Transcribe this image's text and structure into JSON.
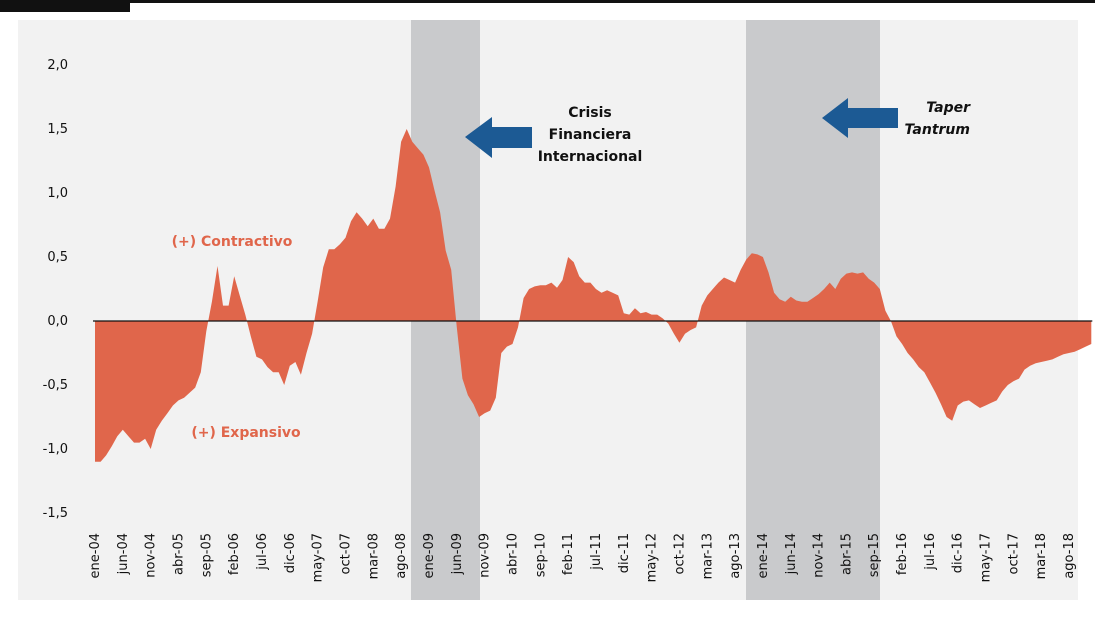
{
  "chart_data": {
    "type": "area",
    "color": "#e0664b",
    "categories": [
      "ene-04",
      null,
      null,
      null,
      null,
      "jun-04",
      null,
      null,
      null,
      null,
      "nov-04",
      null,
      null,
      null,
      null,
      "abr-05",
      null,
      null,
      null,
      null,
      "sep-05",
      null,
      null,
      null,
      null,
      "feb-06",
      null,
      null,
      null,
      null,
      "jul-06",
      null,
      null,
      null,
      null,
      "dic-06",
      null,
      null,
      null,
      null,
      "may-07",
      null,
      null,
      null,
      null,
      "oct-07",
      null,
      null,
      null,
      null,
      "mar-08",
      null,
      null,
      null,
      null,
      "ago-08",
      null,
      null,
      null,
      null,
      "ene-09",
      null,
      null,
      null,
      null,
      "jun-09",
      null,
      null,
      null,
      null,
      "nov-09",
      null,
      null,
      null,
      null,
      "abr-10",
      null,
      null,
      null,
      null,
      "sep-10",
      null,
      null,
      null,
      null,
      "feb-11",
      null,
      null,
      null,
      null,
      "jul-11",
      null,
      null,
      null,
      null,
      "dic-11",
      null,
      null,
      null,
      null,
      "may-12",
      null,
      null,
      null,
      null,
      "oct-12",
      null,
      null,
      null,
      null,
      "mar-13",
      null,
      null,
      null,
      null,
      "ago-13",
      null,
      null,
      null,
      null,
      "ene-14",
      null,
      null,
      null,
      null,
      "jun-14",
      null,
      null,
      null,
      null,
      "nov-14",
      null,
      null,
      null,
      null,
      "abr-15",
      null,
      null,
      null,
      null,
      "sep-15",
      null,
      null,
      null,
      null,
      "feb-16",
      null,
      null,
      null,
      null,
      "jul-16",
      null,
      null,
      null,
      null,
      "dic-16",
      null,
      null,
      null,
      null,
      "may-17",
      null,
      null,
      null,
      null,
      "oct-17",
      null,
      null,
      null,
      null,
      "mar-18",
      null,
      null,
      null,
      null,
      "ago-18",
      null,
      null,
      null,
      null
    ],
    "values": [
      -1.1,
      -1.1,
      -1.05,
      -0.98,
      -0.9,
      -0.85,
      -0.9,
      -0.95,
      -0.95,
      -0.92,
      -1.0,
      -0.85,
      -0.78,
      -0.72,
      -0.66,
      -0.62,
      -0.6,
      -0.56,
      -0.52,
      -0.4,
      -0.08,
      0.15,
      0.43,
      0.12,
      0.12,
      0.35,
      0.2,
      0.05,
      -0.12,
      -0.28,
      -0.3,
      -0.36,
      -0.4,
      -0.4,
      -0.5,
      -0.35,
      -0.32,
      -0.42,
      -0.25,
      -0.1,
      0.15,
      0.42,
      0.56,
      0.56,
      0.6,
      0.65,
      0.78,
      0.85,
      0.8,
      0.74,
      0.8,
      0.72,
      0.72,
      0.8,
      1.05,
      1.4,
      1.5,
      1.4,
      1.35,
      1.3,
      1.2,
      1.02,
      0.85,
      0.55,
      0.4,
      -0.05,
      -0.45,
      -0.58,
      -0.65,
      -0.75,
      -0.72,
      -0.7,
      -0.6,
      -0.25,
      -0.2,
      -0.18,
      -0.05,
      0.18,
      0.25,
      0.27,
      0.28,
      0.28,
      0.3,
      0.26,
      0.32,
      0.5,
      0.46,
      0.35,
      0.3,
      0.3,
      0.25,
      0.22,
      0.24,
      0.22,
      0.2,
      0.06,
      0.05,
      0.1,
      0.06,
      0.07,
      0.05,
      0.05,
      0.02,
      -0.02,
      -0.1,
      -0.17,
      -0.1,
      -0.07,
      -0.05,
      0.12,
      0.2,
      0.25,
      0.3,
      0.34,
      0.32,
      0.3,
      0.4,
      0.48,
      0.53,
      0.52,
      0.5,
      0.38,
      0.22,
      0.17,
      0.15,
      0.19,
      0.16,
      0.15,
      0.15,
      0.18,
      0.21,
      0.25,
      0.3,
      0.25,
      0.33,
      0.37,
      0.38,
      0.37,
      0.38,
      0.33,
      0.3,
      0.25,
      0.08,
      0.0,
      -0.12,
      -0.18,
      -0.25,
      -0.3,
      -0.36,
      -0.4,
      -0.48,
      -0.56,
      -0.65,
      -0.75,
      -0.78,
      -0.66,
      -0.63,
      -0.62,
      -0.65,
      -0.68,
      -0.66,
      -0.64,
      -0.62,
      -0.55,
      -0.5,
      -0.47,
      -0.45,
      -0.38,
      -0.35,
      -0.33,
      -0.32,
      -0.31,
      -0.3,
      -0.28,
      -0.26,
      -0.25,
      -0.24,
      -0.22,
      -0.2,
      -0.18
    ],
    "ylim": [
      -1.5,
      2.0
    ],
    "yticks": [
      {
        "value": -1.5,
        "label": "-1,5"
      },
      {
        "value": -1,
        "label": "-1,0"
      },
      {
        "value": -0.5,
        "label": "-0,5"
      },
      {
        "value": 0,
        "label": "0,0"
      },
      {
        "value": 0.5,
        "label": "0,5"
      },
      {
        "value": 1,
        "label": "1,0"
      },
      {
        "value": 1.5,
        "label": "1,5"
      },
      {
        "value": 2,
        "label": "2,0"
      }
    ],
    "annotations": [
      {
        "lines": [
          "(+) Contractivo"
        ],
        "color": "#e0664b"
      },
      {
        "lines": [
          "(+) Expansivo"
        ],
        "color": "#e0664b"
      },
      {
        "lines": [
          "Crisis",
          "Financiera",
          "Internacional"
        ],
        "color": "#111111"
      },
      {
        "lines": [
          "Taper",
          "Tantrum"
        ],
        "color": "#111111"
      }
    ]
  }
}
